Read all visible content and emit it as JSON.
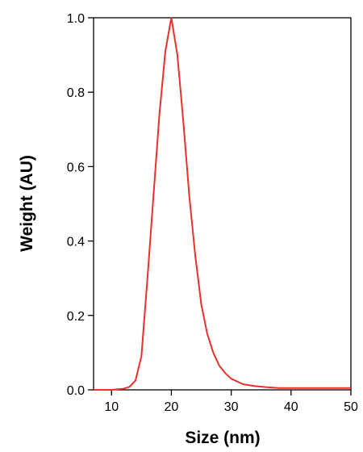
{
  "chart_data": {
    "type": "line",
    "title": "",
    "xlabel": "Size (nm)",
    "ylabel": "Weight (AU)",
    "xlim": [
      7,
      50
    ],
    "ylim": [
      0,
      1.0
    ],
    "xticks": [
      10,
      20,
      30,
      40,
      50
    ],
    "yticks": [
      0.0,
      0.2,
      0.4,
      0.6,
      0.8,
      1.0
    ],
    "xtick_labels": [
      "10",
      "20",
      "30",
      "40",
      "50"
    ],
    "ytick_labels": [
      "0.0",
      "0.2",
      "0.4",
      "0.6",
      "0.8",
      "1.0"
    ],
    "grid": false,
    "legend": "none",
    "series": [
      {
        "color": "#e8322b",
        "x": [
          7,
          10,
          12,
          13,
          14,
          15,
          16,
          17,
          18,
          19,
          20,
          21,
          22,
          23,
          24,
          25,
          26,
          27,
          28,
          29,
          30,
          32,
          34,
          36,
          38,
          40,
          45,
          50
        ],
        "y": [
          0.0,
          0.0,
          0.003,
          0.008,
          0.025,
          0.09,
          0.3,
          0.52,
          0.74,
          0.91,
          1.0,
          0.9,
          0.72,
          0.52,
          0.36,
          0.23,
          0.15,
          0.1,
          0.065,
          0.045,
          0.03,
          0.015,
          0.01,
          0.007,
          0.005,
          0.005,
          0.005,
          0.005
        ]
      }
    ]
  }
}
